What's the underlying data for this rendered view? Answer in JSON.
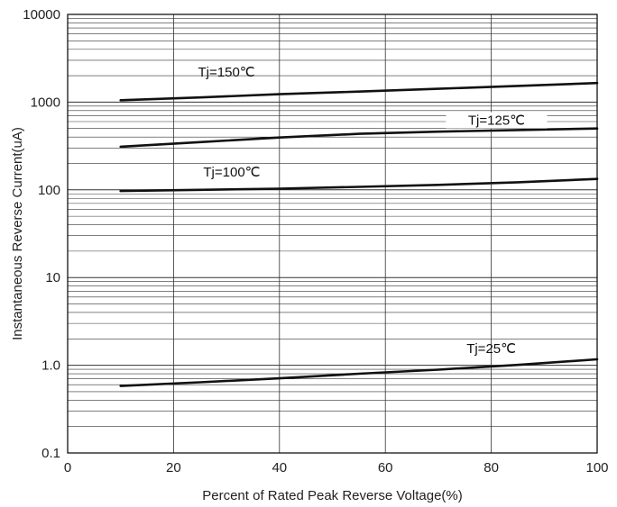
{
  "chart_data": {
    "type": "line",
    "xlabel": "Percent of Rated Peak Reverse Voltage(%)",
    "ylabel": "Instantaneous Reverse Current(uA)",
    "xlim": [
      0,
      100
    ],
    "ylim": [
      0.1,
      10000
    ],
    "yscale": "log",
    "grid": true,
    "x_ticks": [
      "0",
      "20",
      "40",
      "60",
      "80",
      "100"
    ],
    "y_ticks": [
      "0.1",
      "1.0",
      "10",
      "100",
      "1000",
      "10000"
    ],
    "series": [
      {
        "name": "Tj=150℃",
        "x": [
          10,
          25,
          40,
          55,
          70,
          85,
          100
        ],
        "y": [
          1050,
          1130,
          1230,
          1320,
          1420,
          1530,
          1650
        ]
      },
      {
        "name": "Tj=125℃",
        "x": [
          10,
          25,
          40,
          55,
          70,
          85,
          100
        ],
        "y": [
          310,
          350,
          395,
          435,
          460,
          480,
          500
        ]
      },
      {
        "name": "Tj=100℃",
        "x": [
          10,
          25,
          40,
          55,
          70,
          85,
          100
        ],
        "y": [
          97,
          100,
          103,
          108,
          114,
          122,
          133
        ]
      },
      {
        "name": "Tj=25℃",
        "x": [
          10,
          25,
          40,
          55,
          70,
          85,
          100
        ],
        "y": [
          0.58,
          0.64,
          0.71,
          0.8,
          0.89,
          1.01,
          1.17
        ]
      }
    ]
  }
}
